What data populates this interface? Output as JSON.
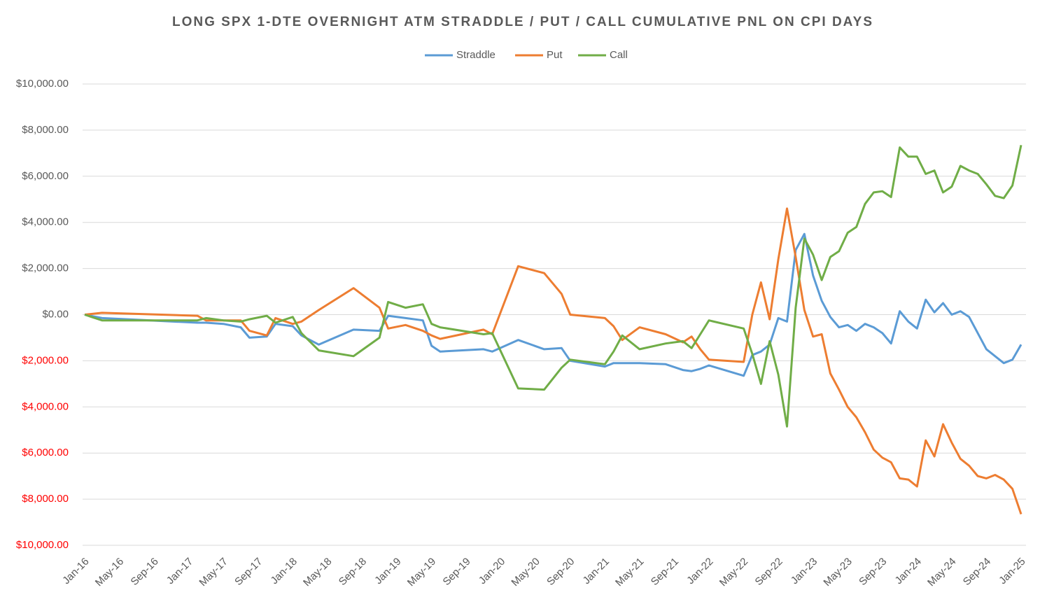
{
  "chart_data": {
    "type": "line",
    "title": "LONG SPX 1-DTE OVERNIGHT ATM STRADDLE / PUT / CALL CUMULATIVE PNL ON CPI DAYS",
    "x": [
      "Jan-16",
      "Mar-16",
      "Feb-17",
      "Mar-17",
      "May-17",
      "Jul-17",
      "Aug-17",
      "Oct-17",
      "Nov-17",
      "Jan-18",
      "Feb-18",
      "Apr-18",
      "Aug-18",
      "Nov-18",
      "Dec-18",
      "Feb-19",
      "Apr-19",
      "May-19",
      "Jun-19",
      "Nov-19",
      "Dec-19",
      "Mar-20",
      "Jun-20",
      "Aug-20",
      "Sep-20",
      "Jan-21",
      "Feb-21",
      "Mar-21",
      "May-21",
      "Aug-21",
      "Oct-21",
      "Nov-21",
      "Dec-21",
      "Jan-22",
      "May-22",
      "Jun-22",
      "Jul-22",
      "Aug-22",
      "Sep-22",
      "Oct-22",
      "Nov-22",
      "Dec-22",
      "Jan-23",
      "Feb-23",
      "Mar-23",
      "Apr-23",
      "May-23",
      "Jun-23",
      "Jul-23",
      "Aug-23",
      "Sep-23",
      "Oct-23",
      "Nov-23",
      "Dec-23",
      "Jan-24",
      "Feb-24",
      "Mar-24",
      "Apr-24",
      "May-24",
      "Jun-24",
      "Jul-24",
      "Aug-24",
      "Sep-24",
      "Oct-24",
      "Nov-24",
      "Dec-24",
      "Jan-25"
    ],
    "series": [
      {
        "name": "Straddle",
        "color": "#5b9bd5",
        "values": [
          0,
          -150,
          -350,
          -350,
          -400,
          -550,
          -1000,
          -950,
          -400,
          -500,
          -900,
          -1300,
          -650,
          -700,
          -50,
          -150,
          -250,
          -1350,
          -1600,
          -1500,
          -1600,
          -1100,
          -1500,
          -1450,
          -2000,
          -2250,
          -2100,
          -2100,
          -2100,
          -2150,
          -2400,
          -2450,
          -2350,
          -2200,
          -2650,
          -1750,
          -1600,
          -1300,
          -150,
          -300,
          2800,
          3500,
          1700,
          600,
          -100,
          -550,
          -450,
          -700,
          -400,
          -550,
          -800,
          -1250,
          150,
          -300,
          -600,
          650,
          100,
          500,
          0,
          150,
          -100,
          -800,
          -1500,
          -1800,
          -2100,
          -1950,
          -1300
        ]
      },
      {
        "name": "Put",
        "color": "#ed7d31",
        "values": [
          0,
          80,
          -50,
          -250,
          -250,
          -250,
          -700,
          -900,
          -150,
          -400,
          -300,
          200,
          1150,
          300,
          -600,
          -450,
          -700,
          -900,
          -1050,
          -650,
          -850,
          2100,
          1800,
          900,
          0,
          -150,
          -500,
          -1100,
          -550,
          -850,
          -1200,
          -950,
          -1500,
          -1950,
          -2050,
          0,
          1400,
          -200,
          2400,
          4600,
          2500,
          200,
          -950,
          -850,
          -2550,
          -3250,
          -4000,
          -4450,
          -5100,
          -5850,
          -6200,
          -6400,
          -7100,
          -7150,
          -7450,
          -5450,
          -6150,
          -4750,
          -5550,
          -6250,
          -6550,
          -7000,
          -7100,
          -6950,
          -7150,
          -7550,
          -8650
        ]
      },
      {
        "name": "Call",
        "color": "#70ad47",
        "values": [
          0,
          -250,
          -250,
          -150,
          -250,
          -300,
          -200,
          -50,
          -350,
          -100,
          -800,
          -1550,
          -1800,
          -1000,
          550,
          300,
          450,
          -400,
          -550,
          -850,
          -800,
          -3200,
          -3250,
          -2300,
          -1950,
          -2150,
          -1600,
          -900,
          -1500,
          -1250,
          -1150,
          -1450,
          -850,
          -250,
          -600,
          -1700,
          -3000,
          -1150,
          -2600,
          -4850,
          300,
          3300,
          2600,
          1500,
          2500,
          2750,
          3550,
          3800,
          4800,
          5300,
          5350,
          5100,
          7250,
          6850,
          6850,
          6100,
          6250,
          5300,
          5550,
          6450,
          6250,
          6100,
          5650,
          5150,
          5050,
          5600,
          7350
        ]
      }
    ],
    "ylim": [
      -10000,
      10000
    ],
    "yticks": [
      {
        "value": -10000,
        "label": "$10,000.00"
      },
      {
        "value": -8000,
        "label": "$8,000.00"
      },
      {
        "value": -6000,
        "label": "$6,000.00"
      },
      {
        "value": -4000,
        "label": "$4,000.00"
      },
      {
        "value": -2000,
        "label": "$2,000.00"
      },
      {
        "value": 0,
        "label": "$0.00"
      },
      {
        "value": 2000,
        "label": "$2,000.00"
      },
      {
        "value": 4000,
        "label": "$4,000.00"
      },
      {
        "value": 6000,
        "label": "$6,000.00"
      },
      {
        "value": 8000,
        "label": "$8,000.00"
      },
      {
        "value": 10000,
        "label": "$10,000.00"
      }
    ],
    "xticks": [
      "Jan-16",
      "May-16",
      "Sep-16",
      "Jan-17",
      "May-17",
      "Sep-17",
      "Jan-18",
      "May-18",
      "Sep-18",
      "Jan-19",
      "May-19",
      "Sep-19",
      "Jan-20",
      "May-20",
      "Sep-20",
      "Jan-21",
      "May-21",
      "Sep-21",
      "Jan-22",
      "May-22",
      "Sep-22",
      "Jan-23",
      "May-23",
      "Sep-23",
      "Jan-24",
      "May-24",
      "Sep-24",
      "Jan-25"
    ],
    "grid": true,
    "legend": "top",
    "negative_tick_color": "#ff0000"
  }
}
